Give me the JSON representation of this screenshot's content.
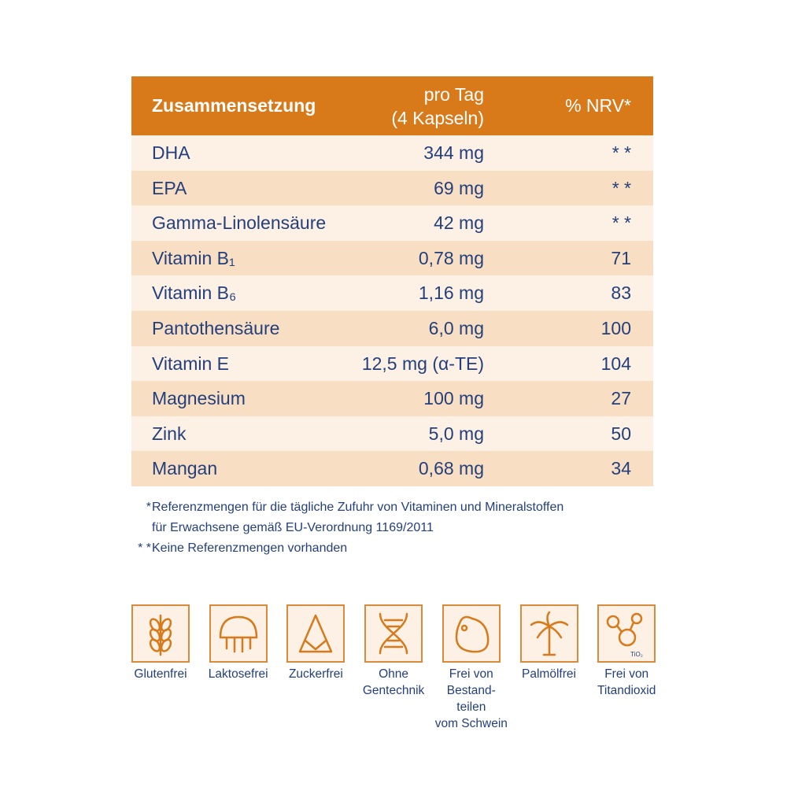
{
  "table": {
    "header": {
      "name": "Zusammensetzung",
      "amount": [
        "pro Tag",
        "(4 Kapseln)"
      ],
      "nrv": "% NRV*"
    },
    "rows": [
      [
        "DHA",
        "344 mg",
        "* *"
      ],
      [
        "EPA",
        "69 mg",
        "* *"
      ],
      [
        "Gamma-Linolensäure",
        "42 mg",
        "* *"
      ],
      [
        "Vitamin B₁",
        "0,78 mg",
        "71"
      ],
      [
        "Vitamin B₆",
        "1,16 mg",
        "83"
      ],
      [
        "Pantothensäure",
        "6,0 mg",
        "100"
      ],
      [
        "Vitamin E",
        "12,5 mg (α-TE)",
        "104"
      ],
      [
        "Magnesium",
        "100 mg",
        "27"
      ],
      [
        "Zink",
        "5,0 mg",
        "50"
      ],
      [
        "Mangan",
        "0,68 mg",
        "34"
      ]
    ]
  },
  "footnotes": [
    {
      "marker": "*",
      "lines": [
        "Referenzmengen für die tägliche Zufuhr von Vitaminen und Mineralstoffen",
        "für Erwachsene gemäß EU-Verordnung 1169/2011"
      ]
    },
    {
      "marker": "* *",
      "lines": [
        "Keine Referenzmengen vorhanden"
      ]
    }
  ],
  "icons": [
    {
      "label": [
        "Glutenfrei"
      ]
    },
    {
      "label": [
        "Laktosefrei"
      ]
    },
    {
      "label": [
        "Zuckerfrei"
      ]
    },
    {
      "label": [
        "Ohne",
        "Gentechnik"
      ]
    },
    {
      "label": [
        "Frei von",
        "Bestand-",
        "teilen",
        "vom Schwein"
      ]
    },
    {
      "label": [
        "Palmölfrei"
      ]
    },
    {
      "label": [
        "Frei von",
        "Titandioxid"
      ],
      "symbol": "TiO₂"
    }
  ]
}
